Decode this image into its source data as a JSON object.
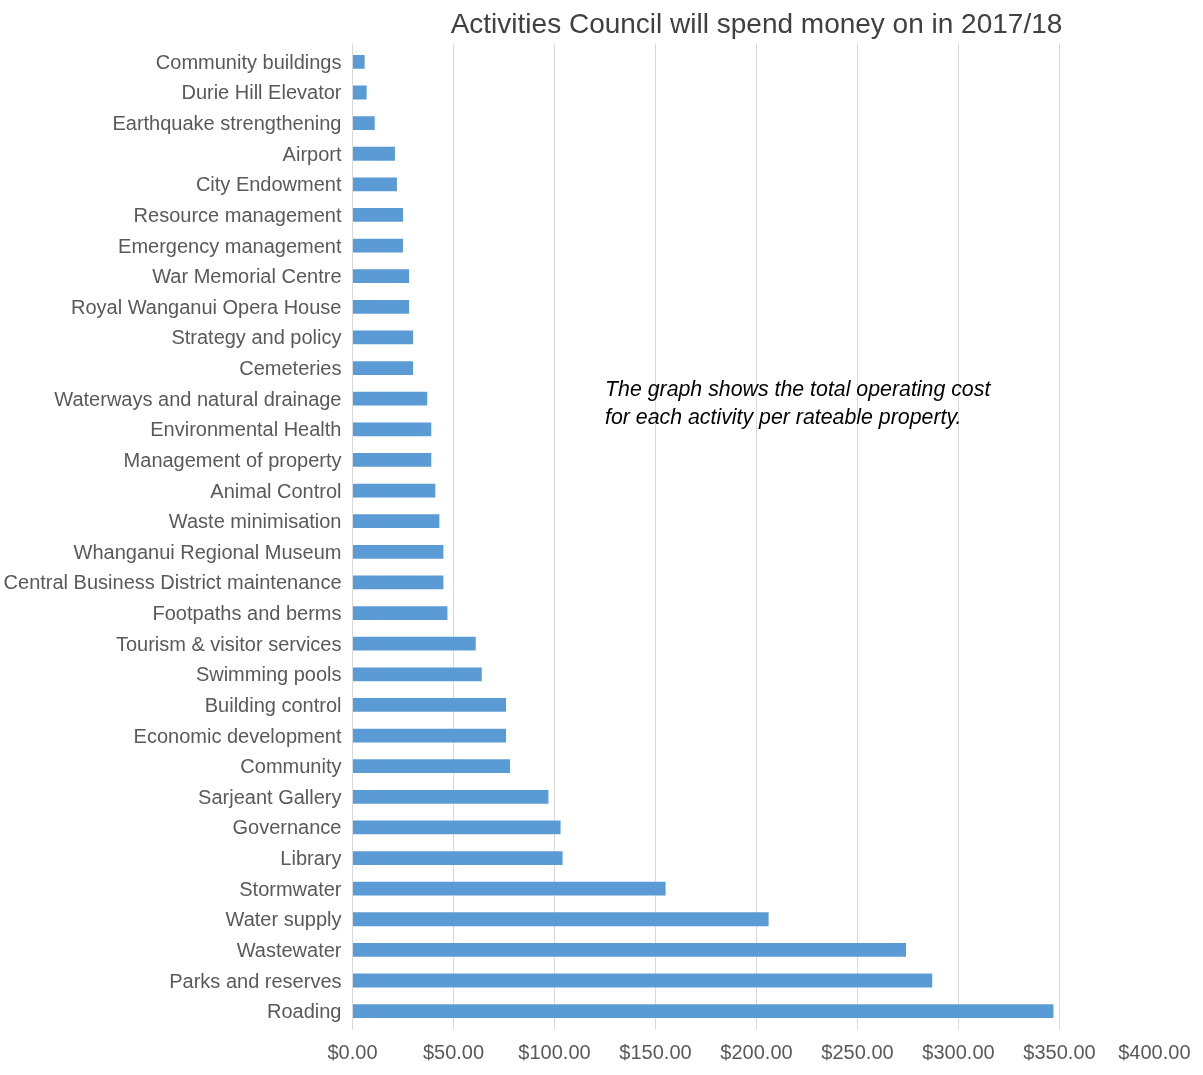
{
  "chart_data": {
    "type": "bar",
    "orientation": "horizontal",
    "title": "Activities Council will spend money on in 2017/18",
    "categories": [
      "Community buildings",
      "Durie Hill Elevator",
      "Earthquake strengthening",
      "Airport",
      "City Endowment",
      "Resource management",
      "Emergency management",
      "War Memorial Centre",
      "Royal Wanganui Opera House",
      "Strategy and policy",
      "Cemeteries",
      "Waterways and natural drainage",
      "Environmental Health",
      "Management of property",
      "Animal Control",
      "Waste minimisation",
      "Whanganui Regional Museum",
      "Central Business District maintenance",
      "Footpaths and berms",
      "Tourism & visitor services",
      "Swimming pools",
      "Building control",
      "Economic development",
      "Community",
      "Sarjeant Gallery",
      "Governance",
      "Library",
      "Stormwater",
      "Water supply",
      "Wastewater",
      "Parks and reserves",
      "Roading"
    ],
    "values": [
      6,
      7,
      11,
      21,
      22,
      25,
      25,
      28,
      28,
      30,
      30,
      37,
      39,
      39,
      41,
      43,
      45,
      45,
      47,
      61,
      64,
      76,
      76,
      78,
      97,
      103,
      104,
      155,
      206,
      274,
      287,
      347
    ],
    "color": "#5b9bd5",
    "xlim": [
      0,
      400
    ],
    "xticks": [
      {
        "value": 0,
        "label": "$0.00"
      },
      {
        "value": 50,
        "label": "$50.00"
      },
      {
        "value": 100,
        "label": "$100.00"
      },
      {
        "value": 150,
        "label": "$150.00"
      },
      {
        "value": 200,
        "label": "$200.00"
      },
      {
        "value": 250,
        "label": "$250.00"
      },
      {
        "value": 300,
        "label": "$300.00"
      },
      {
        "value": 350,
        "label": "$350.00"
      },
      {
        "value": 400,
        "label": "$400.00"
      }
    ],
    "grid": "x",
    "annotations": [
      "The graph shows the total operating cost\nfor each activity per rateable property."
    ]
  }
}
